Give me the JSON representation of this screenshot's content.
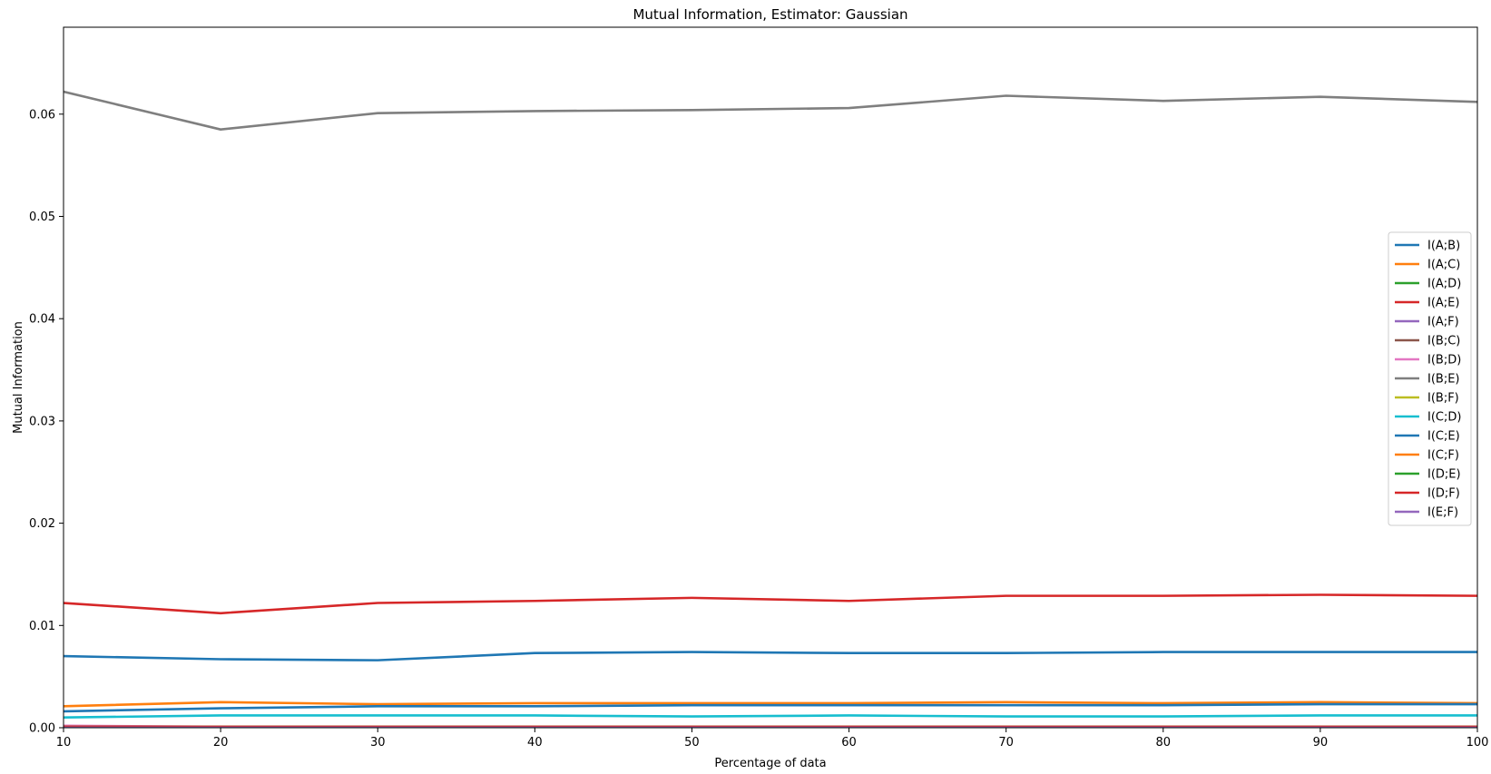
{
  "chart_data": {
    "type": "line",
    "title": "Mutual Information, Estimator: Gaussian",
    "xlabel": "Percentage of data",
    "ylabel": "Mutual Information",
    "xlim": [
      10,
      100
    ],
    "ylim": [
      0.0,
      0.0685
    ],
    "x": [
      10,
      20,
      30,
      40,
      50,
      60,
      70,
      80,
      90,
      100
    ],
    "xticks": [
      "10",
      "20",
      "30",
      "40",
      "50",
      "60",
      "70",
      "80",
      "90",
      "100"
    ],
    "yticks": [
      "0.00",
      "0.01",
      "0.02",
      "0.03",
      "0.04",
      "0.05",
      "0.06"
    ],
    "ytick_values": [
      0.0,
      0.01,
      0.02,
      0.03,
      0.04,
      0.05,
      0.06
    ],
    "grid": false,
    "legend_position": "center-right",
    "series": [
      {
        "name": "I(A;B)",
        "color": "#1f77b4",
        "values": [
          0.007,
          0.0067,
          0.0066,
          0.0073,
          0.0074,
          0.0073,
          0.0073,
          0.0074,
          0.0074,
          0.0074
        ]
      },
      {
        "name": "I(A;C)",
        "color": "#ff7f0e",
        "values": [
          0.0021,
          0.0025,
          0.0023,
          0.0024,
          0.0024,
          0.0024,
          0.0025,
          0.0024,
          0.0025,
          0.0024
        ]
      },
      {
        "name": "I(A;D)",
        "color": "#2ca02c",
        "values": [
          0.0001,
          0.0001,
          0.0001,
          0.0001,
          0.0001,
          0.0001,
          0.0001,
          0.0001,
          0.0001,
          0.0001
        ]
      },
      {
        "name": "I(A;E)",
        "color": "#d62728",
        "values": [
          0.0122,
          0.0112,
          0.0122,
          0.0124,
          0.0127,
          0.0124,
          0.0129,
          0.0129,
          0.013,
          0.0129
        ]
      },
      {
        "name": "I(A;F)",
        "color": "#9467bd",
        "values": [
          0.0001,
          0.0001,
          0.0001,
          0.0001,
          0.0001,
          0.0001,
          0.0001,
          0.0001,
          0.0001,
          0.0001
        ]
      },
      {
        "name": "I(B;C)",
        "color": "#8c564b",
        "values": [
          0.0001,
          0.0001,
          0.0001,
          0.0001,
          0.0001,
          0.0001,
          0.0001,
          0.0001,
          0.0001,
          0.0001
        ]
      },
      {
        "name": "I(B;D)",
        "color": "#e377c2",
        "values": [
          0.0002,
          0.0001,
          0.0001,
          0.0001,
          0.0001,
          0.0001,
          0.0001,
          0.0001,
          0.0001,
          0.0001
        ]
      },
      {
        "name": "I(B;E)",
        "color": "#7f7f7f",
        "values": [
          0.0622,
          0.0585,
          0.0601,
          0.0603,
          0.0604,
          0.0606,
          0.0618,
          0.0613,
          0.0617,
          0.0612
        ]
      },
      {
        "name": "I(B;F)",
        "color": "#bcbd22",
        "values": [
          0.0001,
          0.0001,
          0.0001,
          0.0001,
          0.0001,
          0.0001,
          0.0001,
          0.0001,
          0.0001,
          0.0001
        ]
      },
      {
        "name": "I(C;D)",
        "color": "#17becf",
        "values": [
          0.001,
          0.0012,
          0.0012,
          0.0012,
          0.0011,
          0.0012,
          0.0011,
          0.0011,
          0.0012,
          0.0012
        ]
      },
      {
        "name": "I(C;E)",
        "color": "#1f77b4",
        "values": [
          0.0016,
          0.0019,
          0.0021,
          0.0021,
          0.0022,
          0.0022,
          0.0022,
          0.0022,
          0.0023,
          0.0023
        ]
      },
      {
        "name": "I(C;F)",
        "color": "#ff7f0e",
        "values": [
          0.0001,
          0.0001,
          0.0001,
          0.0001,
          0.0001,
          0.0001,
          0.0001,
          0.0001,
          0.0001,
          0.0001
        ]
      },
      {
        "name": "I(D;E)",
        "color": "#2ca02c",
        "values": [
          0.0001,
          0.0001,
          0.0001,
          0.0001,
          0.0001,
          0.0001,
          0.0001,
          0.0001,
          0.0001,
          0.0001
        ]
      },
      {
        "name": "I(D;F)",
        "color": "#d62728",
        "values": [
          0.0001,
          0.0001,
          0.0001,
          0.0001,
          0.0001,
          0.0001,
          0.0001,
          0.0001,
          0.0001,
          0.0001
        ]
      },
      {
        "name": "I(E;F)",
        "color": "#9467bd",
        "values": [
          0.0,
          0.0,
          0.0,
          0.0,
          0.0,
          0.0,
          0.0,
          0.0,
          0.0,
          0.0
        ]
      }
    ]
  }
}
